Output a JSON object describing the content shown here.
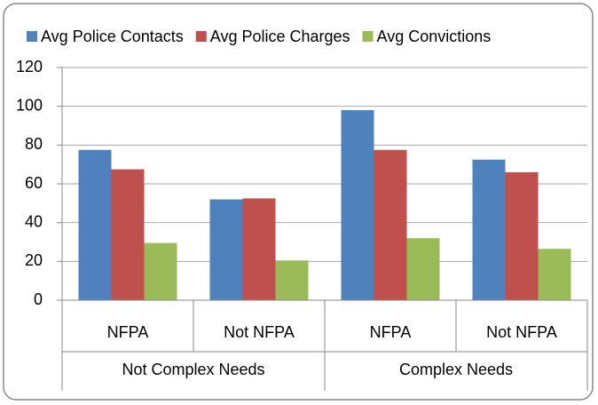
{
  "chart_data": {
    "type": "bar",
    "category_groups": [
      {
        "name": "Not Complex Needs",
        "categories": [
          "NFPA",
          "Not NFPA"
        ]
      },
      {
        "name": "Complex Needs",
        "categories": [
          "NFPA",
          "Not NFPA"
        ]
      }
    ],
    "series": [
      {
        "name": "Avg Police Contacts",
        "color": "#4f81bd",
        "values": [
          77.5,
          52,
          98,
          72.5
        ]
      },
      {
        "name": "Avg Police Charges",
        "color": "#c0504d",
        "values": [
          67.5,
          52.5,
          77.5,
          66
        ]
      },
      {
        "name": "Avg Convictions",
        "color": "#9bbb59",
        "values": [
          29.5,
          20.5,
          32,
          26.5
        ]
      }
    ],
    "ylim": [
      0,
      120
    ],
    "yticks": [
      0,
      20,
      40,
      60,
      80,
      100,
      120
    ],
    "grid": true,
    "legend": "top"
  }
}
